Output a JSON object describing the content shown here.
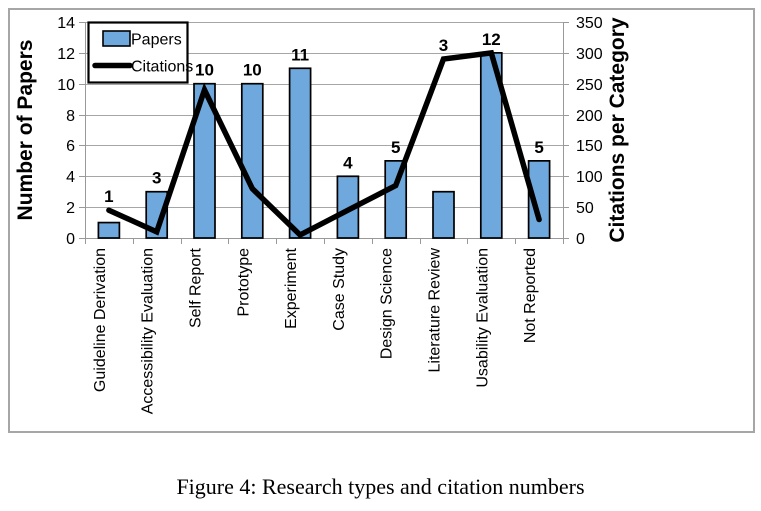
{
  "figure": {
    "caption": "Figure 4: Research types and citation numbers"
  },
  "chart_data": {
    "type": "combo",
    "categories": [
      "Guideline Derivation",
      "Accessibility Evaluation",
      "Self Report",
      "Prototype",
      "Experiment",
      "Case Study",
      "Design Science",
      "Literature Review",
      "Usability Evaluation",
      "Not Reported"
    ],
    "series": [
      {
        "name": "Papers",
        "type": "bar",
        "axis": "left",
        "color": "#6FA8DC",
        "values": [
          1,
          3,
          10,
          10,
          11,
          4,
          5,
          3,
          12,
          5
        ],
        "data_labels": [
          "1",
          "3",
          "10",
          "10",
          "11",
          "4",
          "5",
          "3",
          "12",
          "5"
        ]
      },
      {
        "name": "Citations",
        "type": "line",
        "axis": "right",
        "color": "#000000",
        "values": [
          45,
          10,
          240,
          80,
          5,
          45,
          85,
          290,
          300,
          30
        ]
      }
    ],
    "left_axis": {
      "label": "Number of Papers",
      "min": 0,
      "max": 14,
      "ticks": [
        0,
        2,
        4,
        6,
        8,
        10,
        12,
        14
      ]
    },
    "right_axis": {
      "label": "Citations per Category",
      "min": 0,
      "max": 350,
      "ticks": [
        0,
        50,
        100,
        150,
        200,
        250,
        300,
        350
      ]
    },
    "legend": {
      "position": "top-left",
      "entries": [
        "Papers",
        "Citations"
      ]
    },
    "grid": true
  },
  "colors": {
    "bar_fill": "#6FA8DC",
    "line": "#000000",
    "gridline": "#A6A6A6",
    "axis": "#999999",
    "frame_border": "#A6A6A6",
    "text": "#000000"
  }
}
